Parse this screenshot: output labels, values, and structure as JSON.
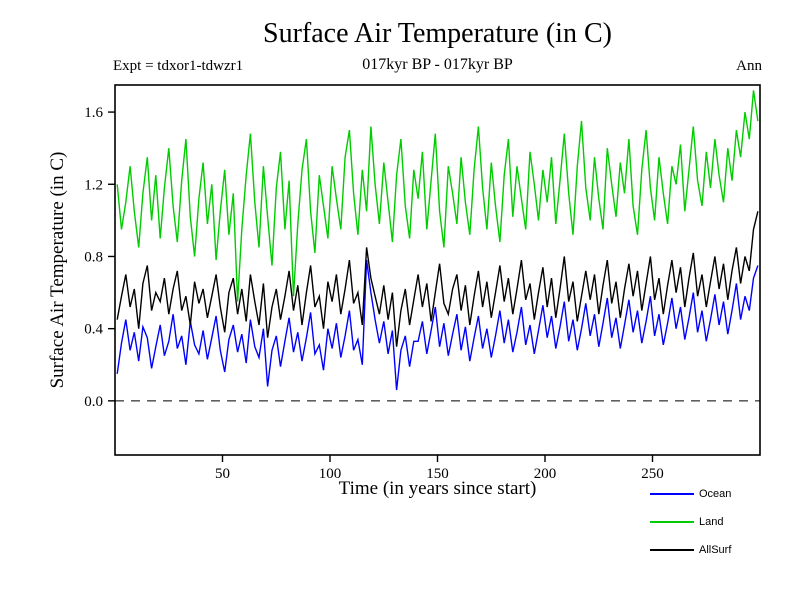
{
  "title": "Surface Air Temperature (in C)",
  "header": {
    "expt": "Expt = tdxor1-tdwzr1",
    "subtitle": "017kyr BP - 017kyr BP",
    "right_label": "Ann"
  },
  "axes": {
    "x_label": "Time (in years since start)",
    "y_label": "Surface Air Temperature (in C)"
  },
  "chart_data": {
    "type": "line",
    "title": "Surface Air Temperature (in C)",
    "subtitle": "017kyr BP - 017kyr BP",
    "xlabel": "Time (in years since start)",
    "ylabel": "Surface Air Temperature (in C)",
    "xlim": [
      0,
      300
    ],
    "ylim": [
      -0.3,
      1.75
    ],
    "x_ticks": [
      50,
      100,
      150,
      200,
      250
    ],
    "y_ticks": [
      0.0,
      0.4,
      0.8,
      1.2,
      1.6
    ],
    "zero_line": {
      "y": 0.0,
      "style": "dashed"
    },
    "grid": false,
    "legend_position": "bottom-right",
    "x": [
      1,
      3,
      5,
      7,
      9,
      11,
      13,
      15,
      17,
      19,
      21,
      23,
      25,
      27,
      29,
      31,
      33,
      35,
      37,
      39,
      41,
      43,
      45,
      47,
      49,
      51,
      53,
      55,
      57,
      59,
      61,
      63,
      65,
      67,
      69,
      71,
      73,
      75,
      77,
      79,
      81,
      83,
      85,
      87,
      89,
      91,
      93,
      95,
      97,
      99,
      101,
      103,
      105,
      107,
      109,
      111,
      113,
      115,
      117,
      119,
      121,
      123,
      125,
      127,
      129,
      131,
      133,
      135,
      137,
      139,
      141,
      143,
      145,
      147,
      149,
      151,
      153,
      155,
      157,
      159,
      161,
      163,
      165,
      167,
      169,
      171,
      173,
      175,
      177,
      179,
      181,
      183,
      185,
      187,
      189,
      191,
      193,
      195,
      197,
      199,
      201,
      203,
      205,
      207,
      209,
      211,
      213,
      215,
      217,
      219,
      221,
      223,
      225,
      227,
      229,
      231,
      233,
      235,
      237,
      239,
      241,
      243,
      245,
      247,
      249,
      251,
      253,
      255,
      257,
      259,
      261,
      263,
      265,
      267,
      269,
      271,
      273,
      275,
      277,
      279,
      281,
      283,
      285,
      287,
      289,
      291,
      293,
      295,
      297,
      299
    ],
    "series": [
      {
        "name": "Ocean",
        "color": "#0000ff",
        "values": [
          0.15,
          0.32,
          0.45,
          0.28,
          0.38,
          0.22,
          0.41,
          0.35,
          0.18,
          0.3,
          0.42,
          0.25,
          0.33,
          0.48,
          0.29,
          0.36,
          0.2,
          0.44,
          0.31,
          0.26,
          0.39,
          0.23,
          0.35,
          0.47,
          0.28,
          0.16,
          0.34,
          0.42,
          0.27,
          0.37,
          0.21,
          0.45,
          0.3,
          0.24,
          0.4,
          0.08,
          0.28,
          0.36,
          0.19,
          0.33,
          0.46,
          0.27,
          0.38,
          0.22,
          0.35,
          0.49,
          0.26,
          0.31,
          0.17,
          0.4,
          0.29,
          0.43,
          0.24,
          0.36,
          0.5,
          0.28,
          0.34,
          0.2,
          0.78,
          0.6,
          0.45,
          0.32,
          0.44,
          0.26,
          0.39,
          0.06,
          0.28,
          0.36,
          0.19,
          0.33,
          0.33,
          0.44,
          0.26,
          0.39,
          0.52,
          0.3,
          0.43,
          0.25,
          0.37,
          0.48,
          0.28,
          0.41,
          0.22,
          0.35,
          0.47,
          0.29,
          0.4,
          0.24,
          0.36,
          0.5,
          0.32,
          0.45,
          0.27,
          0.38,
          0.52,
          0.31,
          0.42,
          0.26,
          0.39,
          0.53,
          0.35,
          0.47,
          0.29,
          0.41,
          0.55,
          0.33,
          0.45,
          0.28,
          0.4,
          0.54,
          0.36,
          0.48,
          0.3,
          0.43,
          0.57,
          0.35,
          0.46,
          0.29,
          0.42,
          0.56,
          0.38,
          0.5,
          0.32,
          0.44,
          0.58,
          0.36,
          0.48,
          0.31,
          0.43,
          0.57,
          0.4,
          0.52,
          0.34,
          0.46,
          0.6,
          0.38,
          0.5,
          0.33,
          0.45,
          0.59,
          0.42,
          0.55,
          0.37,
          0.5,
          0.65,
          0.45,
          0.58,
          0.5,
          0.68,
          0.75
        ]
      },
      {
        "name": "Land",
        "color": "#00cc00",
        "values": [
          1.2,
          0.95,
          1.1,
          1.3,
          1.05,
          0.85,
          1.15,
          1.35,
          1.0,
          1.25,
          0.9,
          1.18,
          1.4,
          1.08,
          0.88,
          1.22,
          1.45,
          1.02,
          0.8,
          1.12,
          1.32,
          0.98,
          1.2,
          0.78,
          1.05,
          1.28,
          0.92,
          1.15,
          0.55,
          0.95,
          1.25,
          1.48,
          1.1,
          0.85,
          1.3,
          1.02,
          0.75,
          1.18,
          1.38,
          0.95,
          1.22,
          0.58,
          0.98,
          1.28,
          1.45,
          1.05,
          0.82,
          1.25,
          1.08,
          0.9,
          1.3,
          1.12,
          0.95,
          1.35,
          1.5,
          1.15,
          0.92,
          1.28,
          1.05,
          1.52,
          1.2,
          0.98,
          1.32,
          1.1,
          0.88,
          1.25,
          1.45,
          1.08,
          0.9,
          1.28,
          1.12,
          1.38,
          0.95,
          1.22,
          1.48,
          1.05,
          0.85,
          1.3,
          1.15,
          0.98,
          1.35,
          1.1,
          0.92,
          1.28,
          1.52,
          1.18,
          0.95,
          1.32,
          1.08,
          0.88,
          1.25,
          1.45,
          1.02,
          1.3,
          1.12,
          0.95,
          1.38,
          1.2,
          1.0,
          1.28,
          1.1,
          1.35,
          0.98,
          1.22,
          1.48,
          1.15,
          0.92,
          1.3,
          1.55,
          1.18,
          1.0,
          1.35,
          1.12,
          0.95,
          1.4,
          1.2,
          1.02,
          1.32,
          1.15,
          1.45,
          1.08,
          0.92,
          1.28,
          1.5,
          1.18,
          1.0,
          1.35,
          1.15,
          0.98,
          1.3,
          1.2,
          1.42,
          1.05,
          1.28,
          1.52,
          1.22,
          1.08,
          1.38,
          1.18,
          1.45,
          1.25,
          1.1,
          1.4,
          1.22,
          1.5,
          1.35,
          1.6,
          1.45,
          1.72,
          1.55
        ]
      },
      {
        "name": "AllSurf",
        "color": "#000000",
        "values": [
          0.45,
          0.58,
          0.7,
          0.52,
          0.62,
          0.4,
          0.65,
          0.75,
          0.5,
          0.6,
          0.55,
          0.68,
          0.48,
          0.62,
          0.72,
          0.5,
          0.58,
          0.42,
          0.66,
          0.54,
          0.62,
          0.46,
          0.58,
          0.7,
          0.52,
          0.38,
          0.6,
          0.68,
          0.48,
          0.62,
          0.44,
          0.7,
          0.55,
          0.42,
          0.65,
          0.35,
          0.52,
          0.62,
          0.45,
          0.58,
          0.72,
          0.5,
          0.64,
          0.42,
          0.6,
          0.75,
          0.52,
          0.58,
          0.4,
          0.66,
          0.55,
          0.7,
          0.48,
          0.62,
          0.78,
          0.54,
          0.6,
          0.42,
          0.85,
          0.68,
          0.58,
          0.48,
          0.64,
          0.45,
          0.6,
          0.3,
          0.5,
          0.62,
          0.42,
          0.56,
          0.7,
          0.52,
          0.65,
          0.44,
          0.6,
          0.76,
          0.54,
          0.48,
          0.62,
          0.7,
          0.5,
          0.64,
          0.42,
          0.58,
          0.72,
          0.52,
          0.66,
          0.46,
          0.6,
          0.75,
          0.55,
          0.68,
          0.48,
          0.62,
          0.78,
          0.56,
          0.65,
          0.45,
          0.6,
          0.74,
          0.52,
          0.68,
          0.46,
          0.62,
          0.8,
          0.55,
          0.66,
          0.44,
          0.58,
          0.72,
          0.56,
          0.7,
          0.48,
          0.64,
          0.78,
          0.54,
          0.66,
          0.46,
          0.62,
          0.76,
          0.58,
          0.72,
          0.5,
          0.65,
          0.8,
          0.56,
          0.68,
          0.48,
          0.64,
          0.78,
          0.6,
          0.74,
          0.52,
          0.68,
          0.82,
          0.58,
          0.7,
          0.52,
          0.66,
          0.8,
          0.62,
          0.76,
          0.56,
          0.72,
          0.85,
          0.65,
          0.8,
          0.72,
          0.95,
          1.05
        ]
      }
    ]
  }
}
